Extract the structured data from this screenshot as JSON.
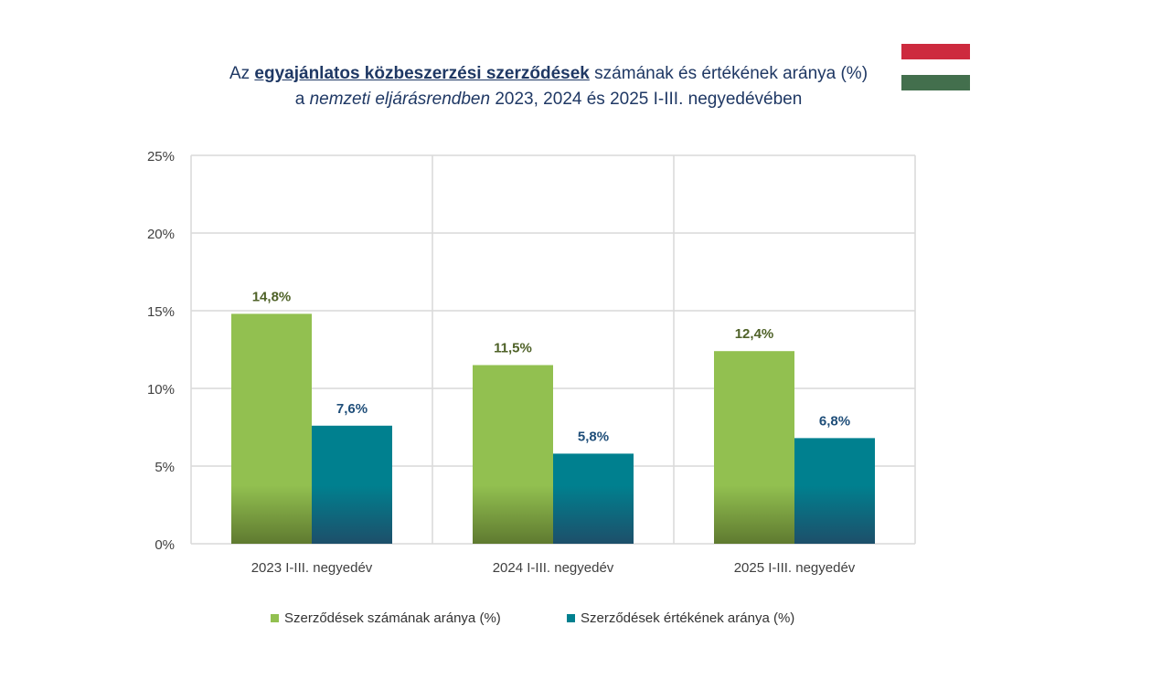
{
  "title": {
    "line1_prefix": "Az ",
    "line1_strong": "egyajánlatos közbeszerzési szerződések",
    "line1_suffix": " számának és értékének aránya (%)",
    "line2_prefix": "a ",
    "line2_em": "nemzeti eljárásrendben",
    "line2_suffix": " 2023, 2024 és 2025 I-III. negyedévében"
  },
  "flag": {
    "colors": [
      "#cd2a3e",
      "#ffffff",
      "#436f4d"
    ]
  },
  "colors": {
    "series1": "#92c050",
    "series2": "#00808f",
    "label1": "#4f6228",
    "label2": "#1f4e79"
  },
  "chart_data": {
    "type": "bar",
    "categories": [
      "2023 I-III. negyedév",
      "2024 I-III. negyedév",
      "2025 I-III. negyedév"
    ],
    "series": [
      {
        "name": "Szerződések számának aránya (%)",
        "values": [
          14.8,
          11.5,
          12.4
        ],
        "labels": [
          "14,8%",
          "11,5%",
          "12,4%"
        ]
      },
      {
        "name": "Szerződések értékének aránya (%)",
        "values": [
          7.6,
          5.8,
          6.8
        ],
        "labels": [
          "7,6%",
          "5,8%",
          "6,8%"
        ]
      }
    ],
    "yticks": [
      0,
      5,
      10,
      15,
      20,
      25
    ],
    "ytick_labels": [
      "0%",
      "5%",
      "10%",
      "15%",
      "20%",
      "25%"
    ],
    "ylim": [
      0,
      25
    ],
    "grid": true,
    "legend": "bottom"
  }
}
